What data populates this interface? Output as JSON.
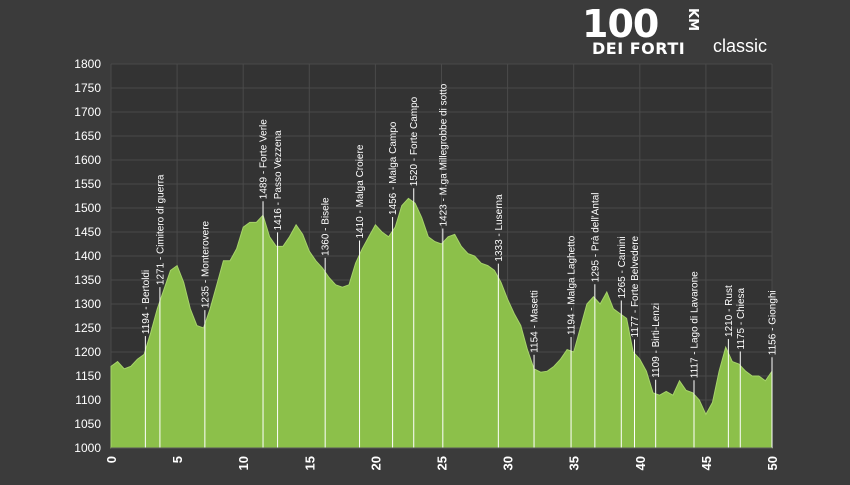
{
  "logo": {
    "number": "100",
    "unit": "KM",
    "name": "DEI FORTI",
    "edition": "classic"
  },
  "colors": {
    "background": "#3b3b3b",
    "plot_background": "#333333",
    "grid": "#4a4a4a",
    "fill": "#8cc04a",
    "fill_edge": "#a6d36a",
    "marker_line": "#ffffff",
    "text": "#ffffff"
  },
  "chart_data": {
    "type": "area",
    "title": "",
    "xlabel": "",
    "ylabel": "",
    "xlim": [
      0,
      50
    ],
    "ylim": [
      1000,
      1800
    ],
    "x_ticks": [
      0,
      5,
      10,
      15,
      20,
      25,
      30,
      35,
      40,
      45,
      50
    ],
    "y_ticks": [
      1000,
      1050,
      1100,
      1150,
      1200,
      1250,
      1300,
      1350,
      1400,
      1450,
      1500,
      1550,
      1600,
      1650,
      1700,
      1750,
      1800
    ],
    "grid": true,
    "profile": [
      [
        0,
        1170
      ],
      [
        0.5,
        1180
      ],
      [
        1.0,
        1165
      ],
      [
        1.5,
        1170
      ],
      [
        2.0,
        1185
      ],
      [
        2.5,
        1195
      ],
      [
        3.0,
        1240
      ],
      [
        3.5,
        1290
      ],
      [
        4.0,
        1330
      ],
      [
        4.5,
        1370
      ],
      [
        5.0,
        1380
      ],
      [
        5.5,
        1345
      ],
      [
        6.0,
        1290
      ],
      [
        6.5,
        1255
      ],
      [
        7.0,
        1250
      ],
      [
        7.5,
        1290
      ],
      [
        8.0,
        1340
      ],
      [
        8.5,
        1390
      ],
      [
        9.0,
        1390
      ],
      [
        9.5,
        1415
      ],
      [
        10.0,
        1460
      ],
      [
        10.5,
        1470
      ],
      [
        11.0,
        1470
      ],
      [
        11.5,
        1485
      ],
      [
        12.0,
        1440
      ],
      [
        12.5,
        1420
      ],
      [
        13.0,
        1420
      ],
      [
        13.5,
        1440
      ],
      [
        14.0,
        1465
      ],
      [
        14.5,
        1445
      ],
      [
        15.0,
        1410
      ],
      [
        15.5,
        1390
      ],
      [
        16.0,
        1375
      ],
      [
        16.5,
        1355
      ],
      [
        17.0,
        1340
      ],
      [
        17.5,
        1335
      ],
      [
        18.0,
        1340
      ],
      [
        18.5,
        1385
      ],
      [
        19.0,
        1415
      ],
      [
        19.5,
        1440
      ],
      [
        20.0,
        1465
      ],
      [
        20.5,
        1450
      ],
      [
        21.0,
        1440
      ],
      [
        21.5,
        1460
      ],
      [
        22.0,
        1505
      ],
      [
        22.5,
        1520
      ],
      [
        23.0,
        1510
      ],
      [
        23.5,
        1480
      ],
      [
        24.0,
        1440
      ],
      [
        24.5,
        1430
      ],
      [
        25.0,
        1425
      ],
      [
        25.5,
        1440
      ],
      [
        26.0,
        1445
      ],
      [
        26.5,
        1420
      ],
      [
        27.0,
        1405
      ],
      [
        27.5,
        1400
      ],
      [
        28.0,
        1385
      ],
      [
        28.5,
        1380
      ],
      [
        29.0,
        1370
      ],
      [
        29.5,
        1345
      ],
      [
        30.0,
        1310
      ],
      [
        30.5,
        1280
      ],
      [
        31.0,
        1255
      ],
      [
        31.5,
        1205
      ],
      [
        32.0,
        1165
      ],
      [
        32.5,
        1158
      ],
      [
        33.0,
        1160
      ],
      [
        33.5,
        1170
      ],
      [
        34.0,
        1185
      ],
      [
        34.5,
        1205
      ],
      [
        35.0,
        1200
      ],
      [
        35.5,
        1250
      ],
      [
        36.0,
        1300
      ],
      [
        36.5,
        1315
      ],
      [
        37.0,
        1300
      ],
      [
        37.5,
        1325
      ],
      [
        38.0,
        1290
      ],
      [
        38.5,
        1280
      ],
      [
        39.0,
        1270
      ],
      [
        39.5,
        1200
      ],
      [
        40.0,
        1185
      ],
      [
        40.5,
        1160
      ],
      [
        41.0,
        1115
      ],
      [
        41.5,
        1110
      ],
      [
        42.0,
        1118
      ],
      [
        42.5,
        1110
      ],
      [
        43.0,
        1140
      ],
      [
        43.5,
        1120
      ],
      [
        44.0,
        1115
      ],
      [
        44.5,
        1100
      ],
      [
        45.0,
        1070
      ],
      [
        45.5,
        1095
      ],
      [
        46.0,
        1160
      ],
      [
        46.5,
        1210
      ],
      [
        47.0,
        1180
      ],
      [
        47.5,
        1175
      ],
      [
        48.0,
        1160
      ],
      [
        48.5,
        1150
      ],
      [
        49.0,
        1150
      ],
      [
        49.5,
        1140
      ],
      [
        50.0,
        1160
      ]
    ],
    "points": [
      {
        "x": 2.6,
        "label": "1194 - Bertoldi"
      },
      {
        "x": 3.7,
        "label": "1271 - Cimitero di guerra"
      },
      {
        "x": 7.1,
        "label": "1235 - Monterovere"
      },
      {
        "x": 11.5,
        "label": "1489 - Forte Verle"
      },
      {
        "x": 12.6,
        "label": "1416 - Passo Vezzena"
      },
      {
        "x": 16.2,
        "label": "1360 - Bisele"
      },
      {
        "x": 18.8,
        "label": "1410 - Malga Croiere"
      },
      {
        "x": 21.3,
        "label": "1456 - Malga Campo"
      },
      {
        "x": 22.9,
        "label": "1520 - Forte Campo"
      },
      {
        "x": 25.1,
        "label": "1423 - M.ga Millegrobbe di sotto"
      },
      {
        "x": 29.3,
        "label": "1333 - Luserna"
      },
      {
        "x": 32.0,
        "label": "1154 - Masetti"
      },
      {
        "x": 34.8,
        "label": "1194 - Malga Laghetto"
      },
      {
        "x": 36.6,
        "label": "1295 - Prà dell'Antal"
      },
      {
        "x": 38.6,
        "label": "1265 - Camini"
      },
      {
        "x": 39.6,
        "label": "1177 - Forte Belvedere"
      },
      {
        "x": 41.2,
        "label": "1109 - Birti-Lenzi"
      },
      {
        "x": 44.1,
        "label": "1117 - Lago di Lavarone"
      },
      {
        "x": 46.7,
        "label": "1210 - Rust"
      },
      {
        "x": 47.6,
        "label": "1175 - Chiesa"
      },
      {
        "x": 50.0,
        "label": "1156 - Gionghi"
      }
    ]
  }
}
